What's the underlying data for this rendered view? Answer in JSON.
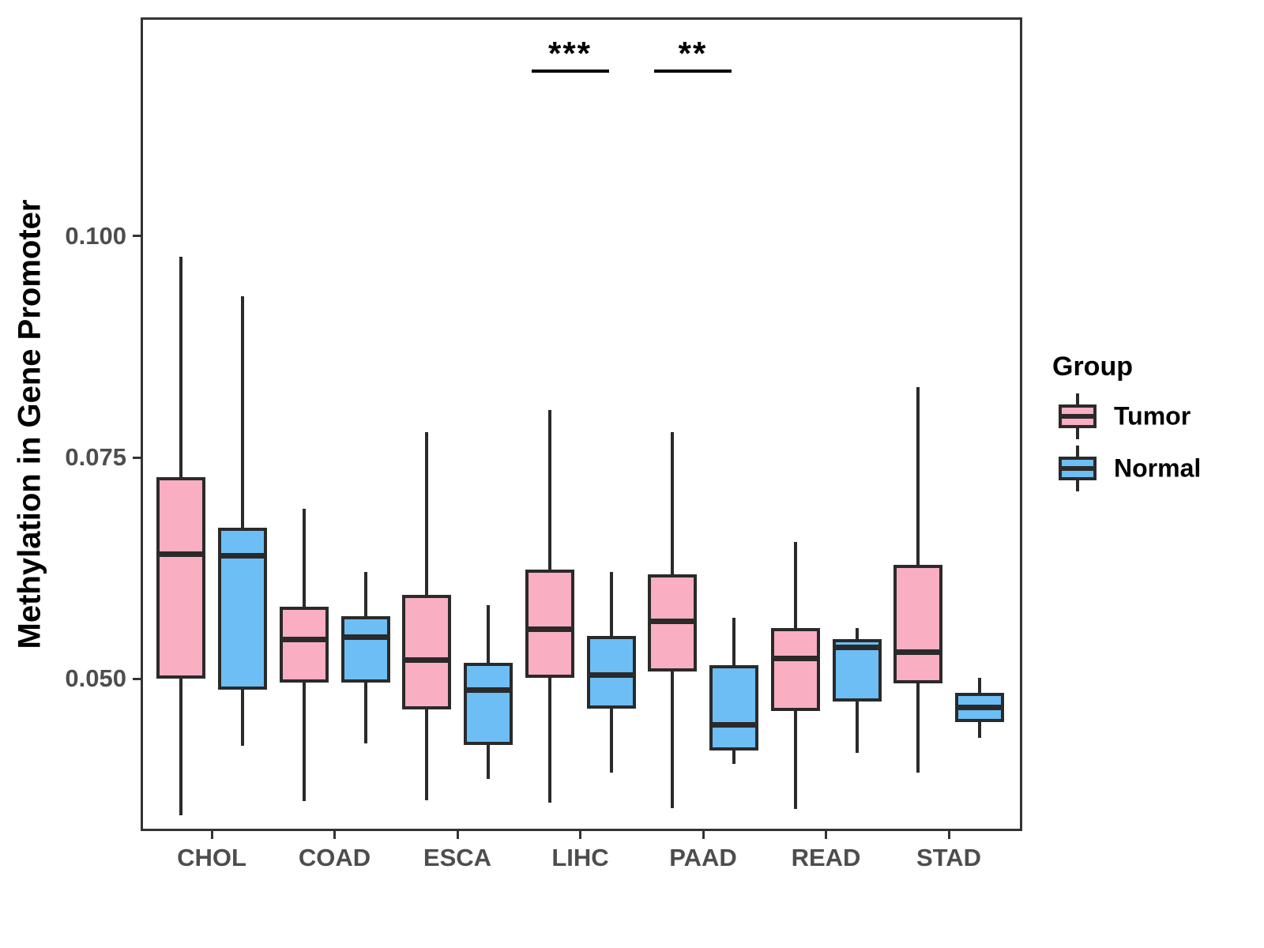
{
  "chart_data": {
    "type": "boxplot",
    "title": "",
    "xlabel": "",
    "ylabel": "Methylation in Gene Promoter",
    "categories": [
      "CHOL",
      "COAD",
      "ESCA",
      "LIHC",
      "PAAD",
      "READ",
      "STAD"
    ],
    "yticks": [
      {
        "value": 0.05,
        "label": "0.050"
      },
      {
        "value": 0.075,
        "label": "0.075"
      },
      {
        "value": 0.1,
        "label": "0.100"
      }
    ],
    "ylim": [
      0.0328,
      0.1247
    ],
    "grid": false,
    "series": [
      {
        "name": "Tumor",
        "color": "#F9AEC2",
        "stats": [
          {
            "category": "CHOL",
            "min": 0.0346,
            "q1": 0.05,
            "median": 0.0641,
            "q3": 0.0728,
            "max": 0.0977
          },
          {
            "category": "COAD",
            "min": 0.0362,
            "q1": 0.0496,
            "median": 0.0544,
            "q3": 0.0581,
            "max": 0.0692
          },
          {
            "category": "ESCA",
            "min": 0.0363,
            "q1": 0.0465,
            "median": 0.0521,
            "q3": 0.0595,
            "max": 0.0779
          },
          {
            "category": "LIHC",
            "min": 0.036,
            "q1": 0.0501,
            "median": 0.0556,
            "q3": 0.0623,
            "max": 0.0804
          },
          {
            "category": "PAAD",
            "min": 0.0354,
            "q1": 0.0508,
            "median": 0.0565,
            "q3": 0.0618,
            "max": 0.0779
          },
          {
            "category": "READ",
            "min": 0.0353,
            "q1": 0.0464,
            "median": 0.0523,
            "q3": 0.0557,
            "max": 0.0655
          },
          {
            "category": "STAD",
            "min": 0.0394,
            "q1": 0.0495,
            "median": 0.053,
            "q3": 0.0629,
            "max": 0.0829
          }
        ]
      },
      {
        "name": "Normal",
        "color": "#6CBEF5",
        "stats": [
          {
            "category": "CHOL",
            "min": 0.0424,
            "q1": 0.0488,
            "median": 0.0639,
            "q3": 0.0671,
            "max": 0.0932
          },
          {
            "category": "COAD",
            "min": 0.0427,
            "q1": 0.0496,
            "median": 0.0547,
            "q3": 0.0571,
            "max": 0.0621
          },
          {
            "category": "ESCA",
            "min": 0.0387,
            "q1": 0.0425,
            "median": 0.0487,
            "q3": 0.0518,
            "max": 0.0583
          },
          {
            "category": "LIHC",
            "min": 0.0394,
            "q1": 0.0466,
            "median": 0.0504,
            "q3": 0.0548,
            "max": 0.0621
          },
          {
            "category": "PAAD",
            "min": 0.0404,
            "q1": 0.0419,
            "median": 0.0448,
            "q3": 0.0515,
            "max": 0.0569
          },
          {
            "category": "READ",
            "min": 0.0416,
            "q1": 0.0474,
            "median": 0.0535,
            "q3": 0.0545,
            "max": 0.0557
          },
          {
            "category": "STAD",
            "min": 0.0433,
            "q1": 0.0451,
            "median": 0.0468,
            "q3": 0.0484,
            "max": 0.0501
          }
        ]
      }
    ],
    "annotations": [
      {
        "category": "LIHC",
        "label": "***"
      },
      {
        "category": "PAAD",
        "label": "**"
      }
    ],
    "legend": {
      "title": "Group",
      "position": "right",
      "entries": [
        {
          "label": "Tumor",
          "color": "#F9AEC2"
        },
        {
          "label": "Normal",
          "color": "#6CBEF5"
        }
      ]
    },
    "colors": {
      "tumor_fill": "#F9AEC2",
      "normal_fill": "#6CBEF5",
      "stroke": "#2A2A2A",
      "panel_border": "#333333",
      "axis_text": "#4D4D4D",
      "background": "#FFFFFF"
    }
  }
}
